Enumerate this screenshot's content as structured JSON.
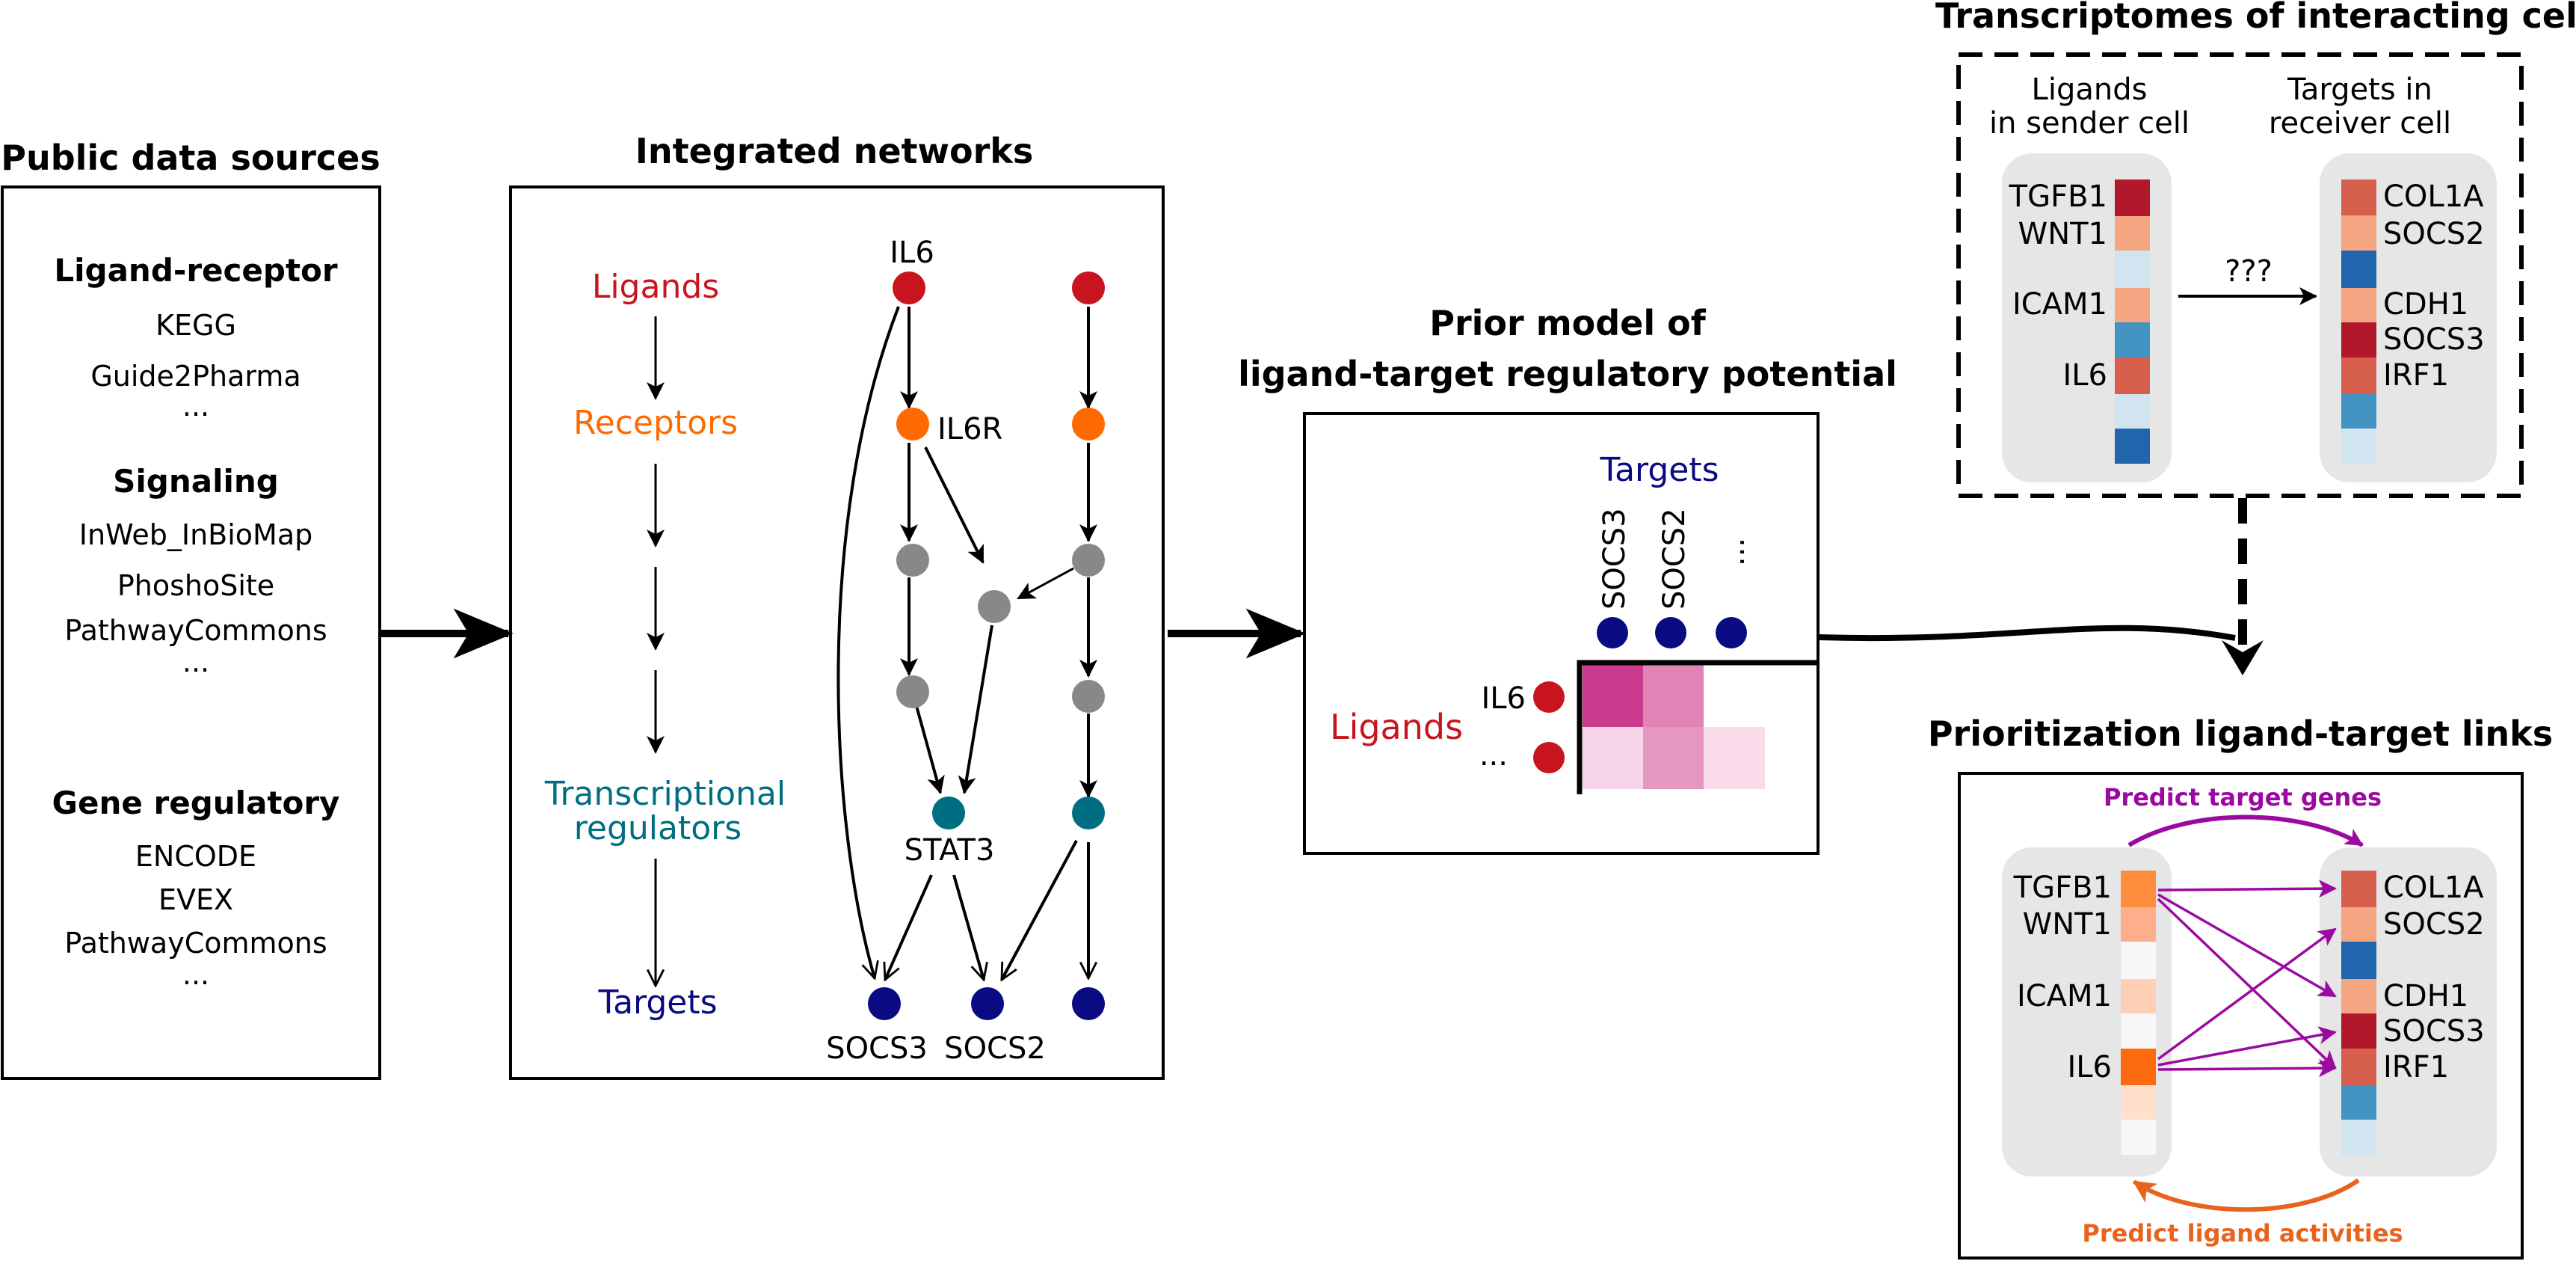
{
  "sources": {
    "title": "Public data sources",
    "groups": [
      {
        "heading": "Ligand-receptor",
        "items": [
          "KEGG",
          "Guide2Pharma",
          "..."
        ]
      },
      {
        "heading": "Signaling",
        "items": [
          "InWeb_InBioMap",
          "PhoshoSite",
          "PathwayCommons",
          "..."
        ]
      },
      {
        "heading": "Gene regulatory",
        "items": [
          "ENCODE",
          "EVEX",
          "PathwayCommons",
          "..."
        ]
      }
    ]
  },
  "networks": {
    "title": "Integrated networks",
    "levels": {
      "ligands": "Ligands",
      "receptors": "Receptors",
      "tf_line1": "Transcriptional",
      "tf_line2": "regulators",
      "targets": "Targets"
    },
    "node_labels": {
      "il6": "IL6",
      "il6r": "IL6R",
      "stat3": "STAT3",
      "socs3": "SOCS3",
      "socs2": "SOCS2"
    }
  },
  "prior": {
    "title_line1": "Prior model of",
    "title_line2": "ligand-target regulatory potential",
    "targets_label": "Targets",
    "ligands_label": "Ligands",
    "col_labels": [
      "SOCS3",
      "SOCS2",
      "..."
    ],
    "row_labels": [
      "IL6",
      "..."
    ]
  },
  "transcriptomes": {
    "title": "Transcriptomes of interacting cells",
    "sender_line1": "Ligands",
    "sender_line2": "in sender cell",
    "receiver_line1": "Targets in",
    "receiver_line2": "receiver cell",
    "ligand_genes": [
      "TGFB1",
      "WNT1",
      "ICAM1",
      "IL6"
    ],
    "target_genes": [
      "COL1A",
      "SOCS2",
      "CDH1",
      "SOCS3",
      "IRF1"
    ],
    "unknown": "???"
  },
  "prioritization": {
    "title": "Prioritization ligand-target links",
    "predict_targets": "Predict target genes",
    "predict_ligands": "Predict ligand activities",
    "ligand_genes": [
      "TGFB1",
      "WNT1",
      "ICAM1",
      "IL6"
    ],
    "target_genes": [
      "COL1A",
      "SOCS2",
      "CDH1",
      "SOCS3",
      "IRF1"
    ]
  },
  "colors": {
    "ligand": "#c8141e",
    "receptor": "#ff6a00",
    "intermediate": "#888888",
    "tf": "#006e82",
    "target": "#0a0a82",
    "purple": "#9b0aa0",
    "orange_arrow": "#e8641e",
    "cell_bg": "#e6e6e6"
  }
}
